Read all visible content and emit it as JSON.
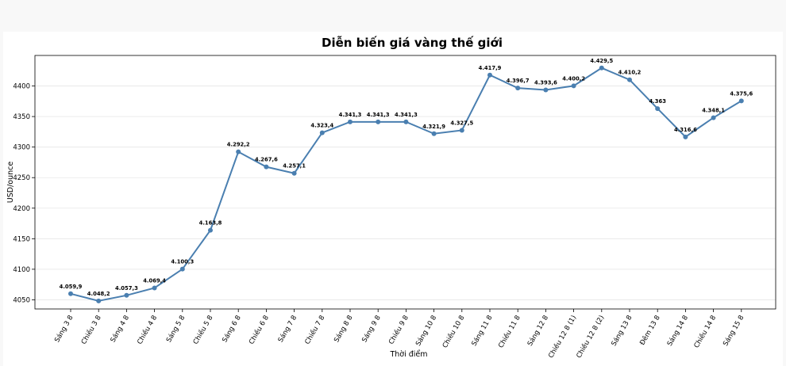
{
  "chart_data": {
    "type": "line",
    "title": "Diễn biến giá vàng thế giới",
    "xlabel": "Thời điểm",
    "ylabel": "USD/ounce",
    "ylim": [
      4035,
      4450
    ],
    "yticks": [
      4050,
      4100,
      4150,
      4200,
      4250,
      4300,
      4350,
      4400
    ],
    "grid": "y-horizontal",
    "line_color": "#4a7fb0",
    "categories": [
      "Sáng 3 8",
      "Chiều 3 8",
      "Sáng 4 8",
      "Chiều 4 8",
      "Sáng 5 8",
      "Chiều 5 8",
      "Sáng 6 8",
      "Chiều 6 8",
      "Sáng 7 8",
      "Chiều 7 8",
      "Sáng 8 8",
      "Sáng 9 8",
      "Chiều 9 8",
      "Sáng 10 8",
      "Chiều 10 8",
      "Sáng 11 8",
      "Chiều 11 8",
      "Sáng 12 8",
      "Chiều 12 8 (1)",
      "Chiều 12 8 (2)",
      "Sáng 13 8",
      "Đêm 13 8",
      "Sáng 14 8",
      "Chiều 14 8",
      "Sáng 15 8"
    ],
    "values": [
      4059.9,
      4048.2,
      4057.3,
      4069.4,
      4100.3,
      4163.8,
      4292.2,
      4267.6,
      4257.1,
      4323.4,
      4341.3,
      4341.3,
      4341.3,
      4321.9,
      4327.5,
      4417.9,
      4396.7,
      4393.6,
      4400.2,
      4429.5,
      4410.2,
      4363,
      4316.6,
      4348.1,
      4375.6
    ],
    "data_labels": [
      "4.059,9",
      "4.048,2",
      "4.057,3",
      "4.069,4",
      "4.100,3",
      "4.163,8",
      "4.292,2",
      "4.267,6",
      "4.257,1",
      "4.323,4",
      "4.341,3",
      "4.341,3",
      "4.341,3",
      "4.321,9",
      "4.327,5",
      "4.417,9",
      "4.396,7",
      "4.393,6",
      "4.400,2",
      "4.429,5",
      "4.410,2",
      "4.363",
      "4.316,6",
      "4.348,1",
      "4.375,6"
    ]
  }
}
